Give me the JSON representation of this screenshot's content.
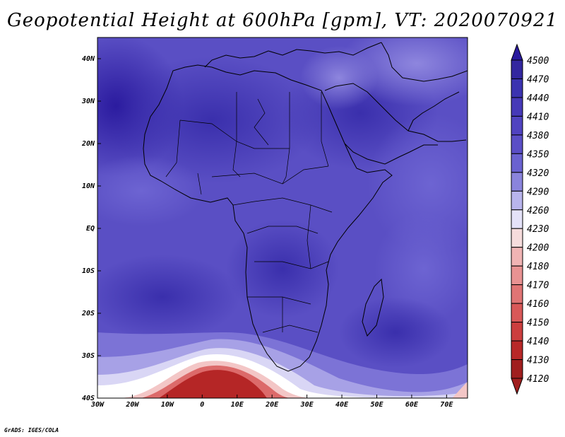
{
  "title": "Geopotential Height at 600hPa [gpm], VT: 2020070921",
  "credit": "GrADS: IGES/COLA",
  "map": {
    "lat_labels": [
      "40N",
      "30N",
      "20N",
      "10N",
      "EQ",
      "10S",
      "20S",
      "30S",
      "40S"
    ],
    "lon_labels": [
      "30W",
      "20W",
      "10W",
      "0",
      "10E",
      "20E",
      "30E",
      "40E",
      "50E",
      "60E",
      "70E"
    ],
    "lat_range": [
      -40,
      45
    ],
    "lon_range": [
      -30,
      76
    ]
  },
  "colorbar": {
    "levels": [
      "4500",
      "4470",
      "4440",
      "4410",
      "4380",
      "4350",
      "4320",
      "4290",
      "4260",
      "4230",
      "4200",
      "4180",
      "4170",
      "4160",
      "4150",
      "4140",
      "4130",
      "4120"
    ],
    "colors": [
      "#2a1a9e",
      "#33279f",
      "#3b33b0",
      "#4639b8",
      "#5043c0",
      "#5a4ec6",
      "#6a62d0",
      "#8a84dc",
      "#b8b4ec",
      "#e4e2f8",
      "#f6dcdc",
      "#f0b4b4",
      "#e89292",
      "#e07474",
      "#d85858",
      "#cc3e3e",
      "#b82828",
      "#a01e1e"
    ]
  }
}
